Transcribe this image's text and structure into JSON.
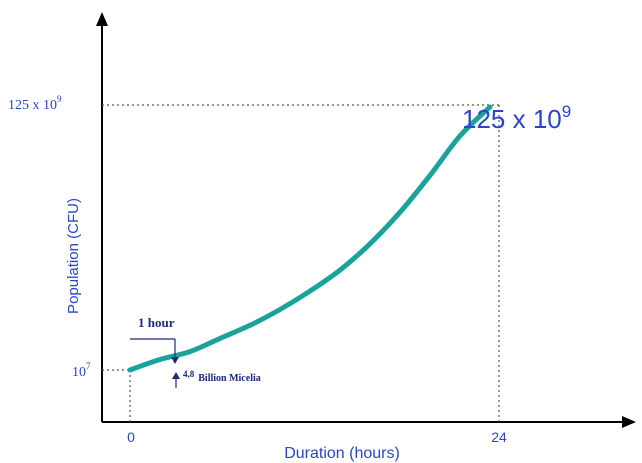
{
  "chart_data": {
    "type": "line",
    "title": "",
    "xlabel": "Duration (hours)",
    "ylabel": "Population  (CFU)",
    "x_ticks": [
      "0",
      "24"
    ],
    "y_ticks": [
      {
        "base": "10",
        "exp": "7"
      },
      {
        "base": "125 x 10",
        "exp": "9"
      }
    ],
    "xlim": [
      0,
      24
    ],
    "series": [
      {
        "color": "#1aa39a",
        "x": [
          0,
          2,
          4,
          6,
          8,
          10,
          12,
          14,
          16,
          18,
          20,
          22,
          24
        ],
        "y": [
          0.0,
          0.04,
          0.07,
          0.12,
          0.17,
          0.23,
          0.3,
          0.38,
          0.48,
          0.6,
          0.74,
          0.89,
          1.0
        ]
      }
    ],
    "annotations": {
      "big_value": {
        "base": "125 x 10",
        "exp": "9"
      },
      "interval_label": "1 hour",
      "increase_label": {
        "base": "4,8",
        "text": "Billion Micelia"
      }
    },
    "grid": false
  },
  "colors": {
    "curve": "#1aa39a",
    "axis": "#000000",
    "text": "#2b45c8",
    "annotation": "#1b2a7a"
  }
}
